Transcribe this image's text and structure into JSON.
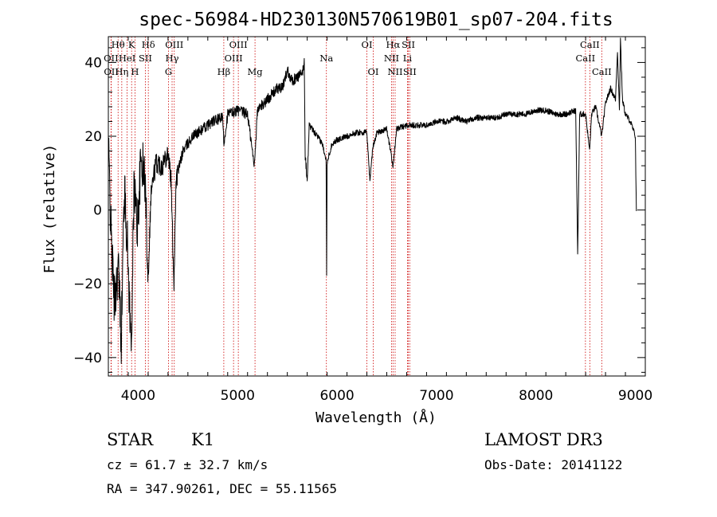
{
  "chart_data": {
    "type": "line",
    "title": "spec-56984-HD230130N570619B01_sp07-204.fits",
    "xlabel": "Wavelength (Å)",
    "ylabel": "Flux (relative)",
    "xlim": [
      3700,
      9100
    ],
    "ylim": [
      -45,
      47
    ],
    "x_ticks": [
      4000,
      5000,
      6000,
      7000,
      8000,
      9000
    ],
    "y_ticks": [
      -40,
      -20,
      0,
      20,
      40
    ],
    "grid": false,
    "line_color": "#000000",
    "marker_color": "#cc0000",
    "spectrum_anchors": [
      [
        3700,
        18
      ],
      [
        3730,
        -8
      ],
      [
        3760,
        -25
      ],
      [
        3800,
        -15
      ],
      [
        3830,
        -35
      ],
      [
        3860,
        6
      ],
      [
        3890,
        -8
      ],
      [
        3930,
        -38
      ],
      [
        3960,
        8
      ],
      [
        3990,
        -5
      ],
      [
        4030,
        14
      ],
      [
        4070,
        8
      ],
      [
        4100,
        -18
      ],
      [
        4130,
        5
      ],
      [
        4180,
        13
      ],
      [
        4240,
        12
      ],
      [
        4300,
        16
      ],
      [
        4330,
        8
      ],
      [
        4360,
        -20
      ],
      [
        4380,
        8
      ],
      [
        4450,
        16
      ],
      [
        4550,
        20
      ],
      [
        4650,
        22
      ],
      [
        4750,
        24
      ],
      [
        4850,
        25
      ],
      [
        4861,
        18
      ],
      [
        4900,
        26
      ],
      [
        5000,
        27
      ],
      [
        5100,
        26
      ],
      [
        5167,
        12
      ],
      [
        5200,
        27
      ],
      [
        5300,
        30
      ],
      [
        5400,
        33
      ],
      [
        5450,
        33
      ],
      [
        5500,
        38
      ],
      [
        5550,
        35
      ],
      [
        5600,
        36
      ],
      [
        5650,
        37
      ],
      [
        5670,
        40
      ],
      [
        5680,
        15
      ],
      [
        5700,
        8
      ],
      [
        5720,
        23
      ],
      [
        5800,
        20
      ],
      [
        5850,
        18
      ],
      [
        5890,
        14
      ],
      [
        5895,
        -17
      ],
      [
        5900,
        13
      ],
      [
        5950,
        18
      ],
      [
        6000,
        19
      ],
      [
        6100,
        20
      ],
      [
        6200,
        21
      ],
      [
        6300,
        21
      ],
      [
        6330,
        8
      ],
      [
        6360,
        17
      ],
      [
        6400,
        21
      ],
      [
        6500,
        22
      ],
      [
        6563,
        12
      ],
      [
        6600,
        22
      ],
      [
        6700,
        23
      ],
      [
        6800,
        23
      ],
      [
        6900,
        23
      ],
      [
        7000,
        24
      ],
      [
        7100,
        24
      ],
      [
        7200,
        25
      ],
      [
        7300,
        24
      ],
      [
        7400,
        25
      ],
      [
        7500,
        25
      ],
      [
        7600,
        25
      ],
      [
        7700,
        26
      ],
      [
        7800,
        26
      ],
      [
        7900,
        26
      ],
      [
        8000,
        27
      ],
      [
        8100,
        27
      ],
      [
        8200,
        26
      ],
      [
        8300,
        26
      ],
      [
        8400,
        27
      ],
      [
        8420,
        -12
      ],
      [
        8440,
        26
      ],
      [
        8500,
        26
      ],
      [
        8540,
        16
      ],
      [
        8560,
        26
      ],
      [
        8600,
        28
      ],
      [
        8662,
        20
      ],
      [
        8700,
        29
      ],
      [
        8750,
        33
      ],
      [
        8800,
        30
      ],
      [
        8820,
        43
      ],
      [
        8840,
        27
      ],
      [
        8850,
        47
      ],
      [
        8870,
        30
      ],
      [
        8900,
        26
      ],
      [
        8950,
        24
      ],
      [
        9000,
        20
      ],
      [
        9010,
        0
      ]
    ],
    "lines": [
      {
        "label": "Hθ",
        "x": 3798,
        "row": 0
      },
      {
        "label": "OII",
        "x": 3727,
        "row": 1
      },
      {
        "label": "OII",
        "x": 3729,
        "row": 2
      },
      {
        "label": "Hη",
        "x": 3835,
        "row": 2
      },
      {
        "label": "K",
        "x": 3934,
        "row": 0
      },
      {
        "label": "HeI",
        "x": 3889,
        "row": 1
      },
      {
        "label": "H",
        "x": 3968,
        "row": 2
      },
      {
        "label": "Hδ",
        "x": 4102,
        "row": 0
      },
      {
        "label": "SII",
        "x": 4072,
        "row": 1
      },
      {
        "label": "OIII",
        "x": 4363,
        "row": 0
      },
      {
        "label": "Hγ",
        "x": 4341,
        "row": 1
      },
      {
        "label": "G",
        "x": 4305,
        "row": 2
      },
      {
        "label": "Hβ",
        "x": 4861,
        "row": 2
      },
      {
        "label": "OIII",
        "x": 5007,
        "row": 0
      },
      {
        "label": "OIII",
        "x": 4959,
        "row": 1
      },
      {
        "label": "Mg",
        "x": 5175,
        "row": 2
      },
      {
        "label": "Na",
        "x": 5893,
        "row": 1
      },
      {
        "label": "OI",
        "x": 6300,
        "row": 0
      },
      {
        "label": "OI",
        "x": 6364,
        "row": 2
      },
      {
        "label": "Hα",
        "x": 6563,
        "row": 0
      },
      {
        "label": "SII",
        "x": 6717,
        "row": 0
      },
      {
        "label": "NII",
        "x": 6548,
        "row": 1
      },
      {
        "label": "Li",
        "x": 6708,
        "row": 1
      },
      {
        "label": "NII",
        "x": 6584,
        "row": 2
      },
      {
        "label": "SII",
        "x": 6731,
        "row": 2
      },
      {
        "label": "CaII",
        "x": 8542,
        "row": 0
      },
      {
        "label": "CaII",
        "x": 8498,
        "row": 1
      },
      {
        "label": "CaII",
        "x": 8662,
        "row": 2
      }
    ]
  },
  "footer": {
    "class_label": "STAR",
    "subclass": "K1",
    "survey": "LAMOST DR3",
    "cz_line": "cz = 61.7 ± 32.7 km/s",
    "obs_date_line": "Obs-Date: 20141122",
    "coords_line": "RA = 347.90261, DEC =  55.11565"
  }
}
